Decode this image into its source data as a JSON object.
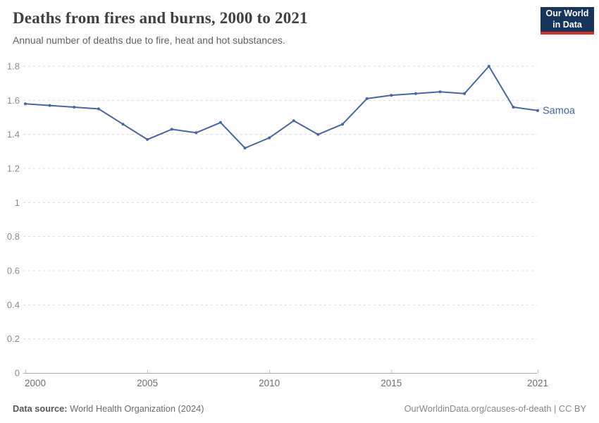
{
  "header": {
    "title": "Deaths from fires and burns, 2000 to 2021",
    "subtitle": "Annual number of deaths due to fire, heat and hot substances."
  },
  "logo": {
    "line1": "Our World",
    "line2": "in Data",
    "bg_color": "#16355a",
    "bar_color": "#d0352b"
  },
  "chart_data": {
    "type": "line",
    "title": "Deaths from fires and burns, 2000 to 2021",
    "xlabel": "",
    "ylabel": "",
    "xlim": [
      2000,
      2021
    ],
    "ylim": [
      0,
      1.8
    ],
    "yticks": [
      0,
      0.2,
      0.4,
      0.6,
      0.8,
      1,
      1.2,
      1.4,
      1.6,
      1.8
    ],
    "xticks": [
      2000,
      2005,
      2010,
      2015,
      2021
    ],
    "xtick_labels": [
      "2000",
      "2005",
      "2010",
      "2015",
      "2021"
    ],
    "grid": "horizontal-dashed",
    "legend": "line-end-label",
    "series": [
      {
        "name": "Samoa",
        "color": "#4866a4",
        "x": [
          2000,
          2001,
          2002,
          2003,
          2004,
          2005,
          2006,
          2007,
          2008,
          2009,
          2010,
          2011,
          2012,
          2013,
          2014,
          2015,
          2016,
          2017,
          2018,
          2019,
          2020,
          2021
        ],
        "values": [
          1.58,
          1.57,
          1.56,
          1.55,
          1.46,
          1.37,
          1.43,
          1.41,
          1.47,
          1.32,
          1.38,
          1.48,
          1.4,
          1.46,
          1.61,
          1.63,
          1.64,
          1.65,
          1.64,
          1.8,
          1.56,
          1.54
        ]
      }
    ]
  },
  "footer": {
    "source_label": "Data source:",
    "source_text": "World Health Organization (2024)",
    "credit": "OurWorldinData.org/causes-of-death | CC BY"
  }
}
